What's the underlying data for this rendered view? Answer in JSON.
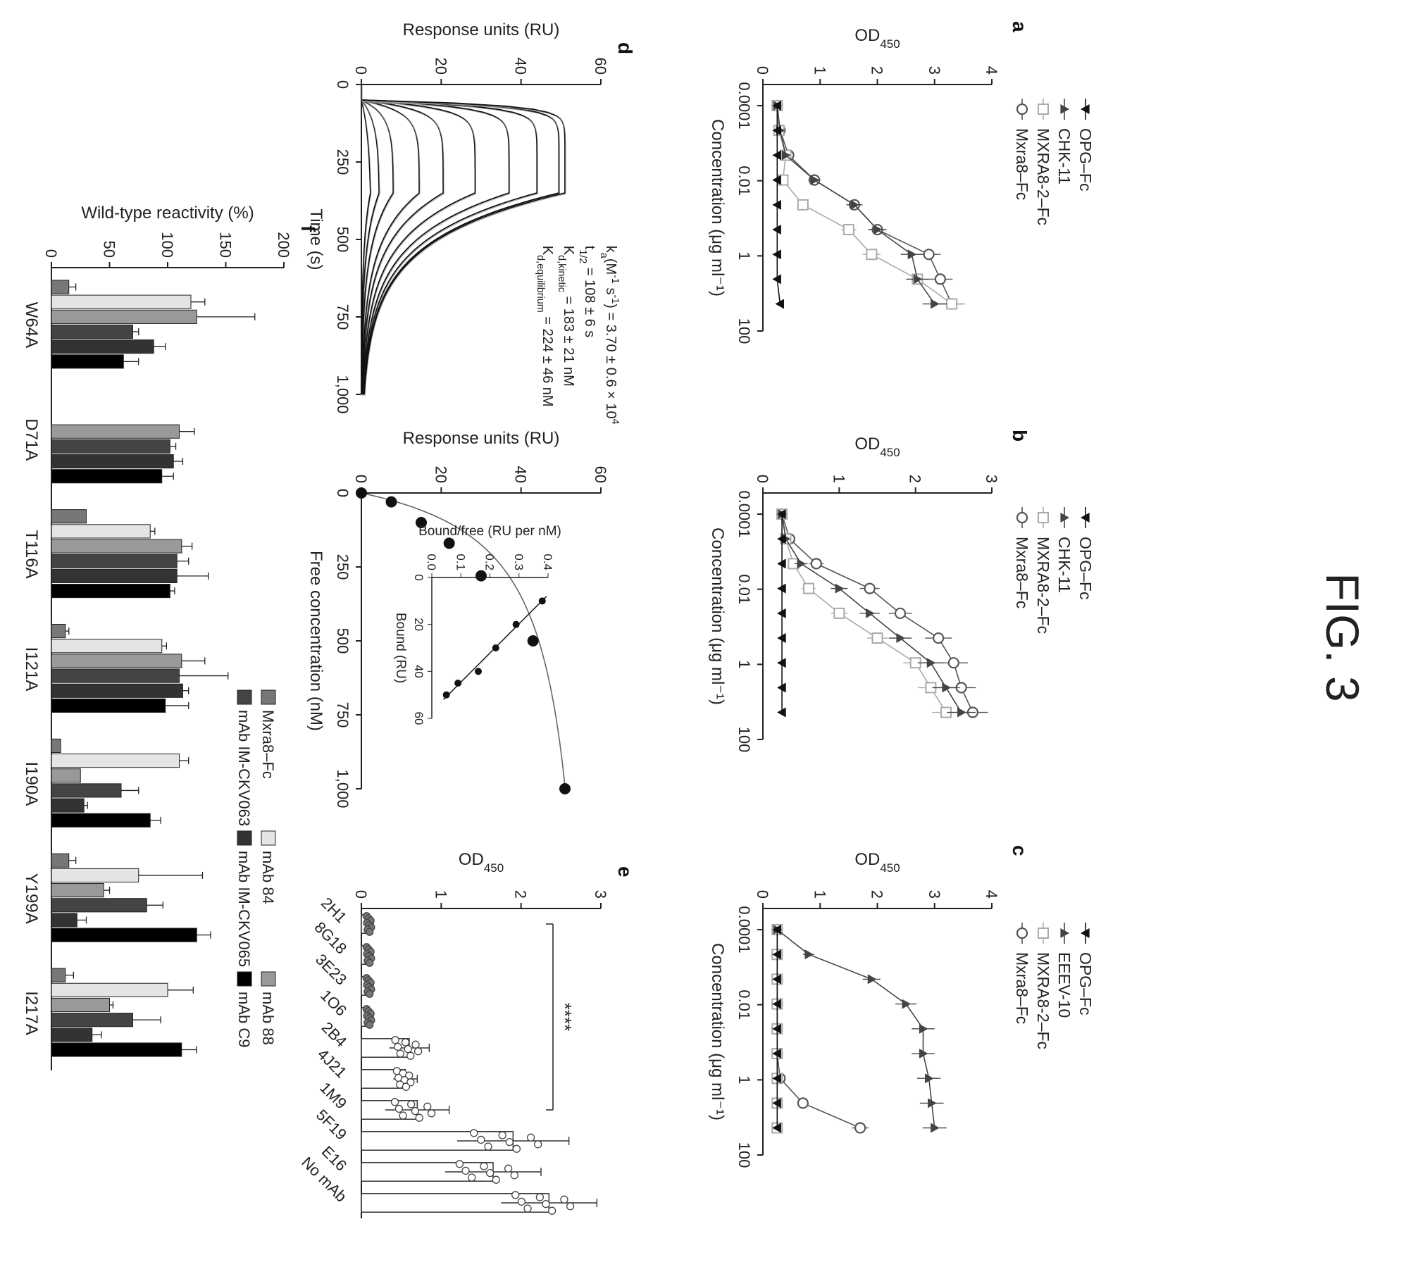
{
  "figure_title": "FIG. 3",
  "colors": {
    "mxra8": "#555555",
    "mxra82": "#aaaaaa",
    "chk11": "#444444",
    "opg": "#111111",
    "eeev10": "#444444",
    "fit": "#666666"
  },
  "chart_data": [
    {
      "panel": "a",
      "type": "scatter",
      "xscale": "log",
      "xlabel": "Concentration (μg ml⁻¹)",
      "ylabel": "OD450",
      "xlim": [
        0.0001,
        100
      ],
      "ylim": [
        0,
        4
      ],
      "xticks": [
        "0.0001",
        "0.01",
        "1",
        "100"
      ],
      "yticks": [
        "0",
        "1",
        "2",
        "3",
        "4"
      ],
      "legend_position": "top-left",
      "x": [
        0.0001,
        0.000457,
        0.00209,
        0.00955,
        0.0437,
        0.2,
        0.912,
        4.17,
        19
      ],
      "series": [
        {
          "name": "Mxra8–Fc",
          "marker": "open circle",
          "values": [
            0.25,
            0.3,
            0.45,
            0.9,
            1.6,
            2.0,
            2.9,
            3.1,
            3.3
          ]
        },
        {
          "name": "MXRA8-2–Fc",
          "marker": "open square",
          "values": [
            0.25,
            0.28,
            0.4,
            0.35,
            0.7,
            1.5,
            1.9,
            2.7,
            3.3
          ]
        },
        {
          "name": "CHK-11",
          "marker": "filled triangle",
          "values": [
            0.25,
            0.3,
            0.4,
            0.9,
            1.6,
            2.0,
            2.6,
            2.7,
            3.0
          ]
        },
        {
          "name": "OPG–Fc",
          "marker": "filled inverted triangle",
          "values": [
            0.25,
            0.25,
            0.25,
            0.25,
            0.25,
            0.25,
            0.25,
            0.25,
            0.3
          ]
        }
      ]
    },
    {
      "panel": "b",
      "type": "scatter",
      "xscale": "log",
      "xlabel": "Concentration (μg ml⁻¹)",
      "ylabel": "OD450",
      "xlim": [
        0.0001,
        100
      ],
      "ylim": [
        0,
        3
      ],
      "xticks": [
        "0.0001",
        "0.01",
        "1",
        "100"
      ],
      "yticks": [
        "0",
        "1",
        "2",
        "3"
      ],
      "legend_position": "top-left",
      "x": [
        0.0001,
        0.000457,
        0.00209,
        0.00955,
        0.0437,
        0.2,
        0.912,
        4.17,
        19
      ],
      "series": [
        {
          "name": "Mxra8–Fc",
          "marker": "open circle",
          "values": [
            0.25,
            0.35,
            0.7,
            1.4,
            1.8,
            2.3,
            2.5,
            2.6,
            2.75
          ]
        },
        {
          "name": "MXRA8-2–Fc",
          "marker": "open square",
          "values": [
            0.25,
            0.3,
            0.4,
            0.6,
            1.0,
            1.5,
            2.0,
            2.2,
            2.4
          ]
        },
        {
          "name": "CHK-11",
          "marker": "filled triangle",
          "values": [
            0.25,
            0.3,
            0.5,
            1.0,
            1.4,
            1.8,
            2.2,
            2.4,
            2.6
          ]
        },
        {
          "name": "OPG–Fc",
          "marker": "filled inverted triangle",
          "values": [
            0.25,
            0.25,
            0.25,
            0.25,
            0.25,
            0.25,
            0.25,
            0.25,
            0.25
          ]
        }
      ]
    },
    {
      "panel": "c",
      "type": "scatter",
      "xscale": "log",
      "xlabel": "Concentration (μg ml⁻¹)",
      "ylabel": "OD450",
      "xlim": [
        0.0001,
        100
      ],
      "ylim": [
        0,
        4
      ],
      "xticks": [
        "0.0001",
        "0.01",
        "1",
        "100"
      ],
      "yticks": [
        "0",
        "1",
        "2",
        "3",
        "4"
      ],
      "legend_position": "top-left",
      "x": [
        0.0001,
        0.000457,
        0.00209,
        0.00955,
        0.0437,
        0.2,
        0.912,
        4.17,
        19
      ],
      "series": [
        {
          "name": "Mxra8–Fc",
          "marker": "open circle",
          "values": [
            0.25,
            0.25,
            0.25,
            0.25,
            0.25,
            0.25,
            0.3,
            0.7,
            1.7
          ]
        },
        {
          "name": "MXRA8-2–Fc",
          "marker": "open square",
          "values": [
            0.25,
            0.25,
            0.25,
            0.25,
            0.25,
            0.25,
            0.25,
            0.25,
            0.25
          ]
        },
        {
          "name": "EEEV-10",
          "marker": "filled triangle",
          "values": [
            0.25,
            0.8,
            1.9,
            2.5,
            2.8,
            2.8,
            2.9,
            2.95,
            3.0
          ]
        },
        {
          "name": "OPG–Fc",
          "marker": "filled inverted triangle",
          "values": [
            0.25,
            0.25,
            0.25,
            0.25,
            0.25,
            0.25,
            0.25,
            0.25,
            0.25
          ]
        }
      ]
    },
    {
      "panel": "d",
      "type": "line",
      "xlabel": "Time (s)",
      "ylabel": "Response units (RU)",
      "xlim": [
        0,
        1000
      ],
      "ylim": [
        0,
        60
      ],
      "xticks": [
        "0",
        "250",
        "500",
        "750",
        "1,000"
      ],
      "yticks": [
        "0",
        "20",
        "40",
        "60"
      ],
      "association_start": 50,
      "dissociation_start": 350,
      "plateaus": [
        2.5,
        4.5,
        8,
        14.5,
        20.5,
        28.5,
        37,
        44,
        49.5,
        51
      ],
      "annotations": [
        "k_a(M⁻¹ s⁻¹) = 3.70 ± 0.6 × 10⁴",
        "t_1/2 = 108 ± 6 s",
        "K_d,kinetic = 183 ± 21 nM",
        "K_d,equilibrium = 224 ± 46 nM"
      ]
    },
    {
      "panel": "d-inset-binding",
      "type": "scatter",
      "xlabel": "Free concentration (nM)",
      "ylabel": "Response units (RU)",
      "xlim": [
        0,
        1000
      ],
      "ylim": [
        0,
        60
      ],
      "xticks": [
        "0",
        "250",
        "500",
        "750",
        "1,000"
      ],
      "yticks": [
        "0",
        "20",
        "40",
        "60"
      ],
      "x": [
        0,
        30,
        100,
        170,
        280,
        500,
        1000
      ],
      "y": [
        0,
        7.5,
        15,
        22,
        30,
        43,
        51
      ],
      "inset": {
        "type": "scatter",
        "xlabel": "Bound (RU)",
        "ylabel": "Bound/free (RU per nM)",
        "xlim": [
          0,
          60
        ],
        "ylim": [
          0,
          0.4
        ],
        "xticks": [
          "0",
          "20",
          "40",
          "60"
        ],
        "yticks": [
          "0.0",
          "0.1",
          "0.2",
          "0.3",
          "0.4"
        ],
        "x": [
          10,
          20,
          30,
          40,
          45,
          50
        ],
        "y": [
          0.38,
          0.29,
          0.22,
          0.16,
          0.09,
          0.05
        ]
      }
    },
    {
      "panel": "e",
      "type": "bar",
      "ylabel": "OD450",
      "ylim": [
        0,
        3
      ],
      "yticks": [
        "0",
        "1",
        "2",
        "3"
      ],
      "categories": [
        "2H1",
        "8G18",
        "3E23",
        "1O6",
        "2B4",
        "4J21",
        "1M9",
        "5F19",
        "E16",
        "No mAb"
      ],
      "values": [
        0.1,
        0.1,
        0.1,
        0.1,
        0.6,
        0.55,
        0.7,
        1.9,
        1.65,
        2.35
      ],
      "errors": [
        0.05,
        0.05,
        0.05,
        0.05,
        0.25,
        0.15,
        0.4,
        0.7,
        0.6,
        0.6
      ],
      "significance": "****"
    },
    {
      "panel": "f",
      "type": "bar",
      "ylabel": "Wild-type reactivity (%)",
      "ylim": [
        0,
        200
      ],
      "yticks": [
        "0",
        "50",
        "100",
        "150",
        "200"
      ],
      "legend_position": "top-right",
      "categories": [
        "W64A",
        "D71A",
        "T116A",
        "I121A",
        "I190A",
        "Y199A",
        "I217A"
      ],
      "series": [
        {
          "name": "Mxra8–Fc",
          "values": [
            15,
            null,
            30,
            12,
            8,
            15,
            12
          ],
          "errors": [
            6,
            null,
            0,
            3,
            0,
            6,
            7
          ]
        },
        {
          "name": "mAb 84",
          "values": [
            120,
            null,
            85,
            95,
            110,
            75,
            100
          ],
          "errors": [
            12,
            null,
            4,
            4,
            8,
            55,
            22
          ]
        },
        {
          "name": "mAb 88",
          "values": [
            125,
            110,
            112,
            112,
            25,
            45,
            50
          ],
          "errors": [
            50,
            13,
            9,
            20,
            0,
            5,
            3
          ]
        },
        {
          "name": "mAb IM-CKV063",
          "values": [
            70,
            102,
            108,
            110,
            60,
            82,
            70
          ],
          "errors": [
            5,
            5,
            10,
            42,
            15,
            14,
            24
          ]
        },
        {
          "name": "mAb IM-CKV065",
          "values": [
            88,
            105,
            108,
            113,
            28,
            22,
            35
          ],
          "errors": [
            10,
            8,
            27,
            5,
            3,
            8,
            8
          ]
        },
        {
          "name": "mAb C9",
          "values": [
            62,
            95,
            102,
            98,
            85,
            125,
            112
          ],
          "errors": [
            13,
            10,
            4,
            20,
            9,
            12,
            13
          ]
        }
      ]
    }
  ]
}
